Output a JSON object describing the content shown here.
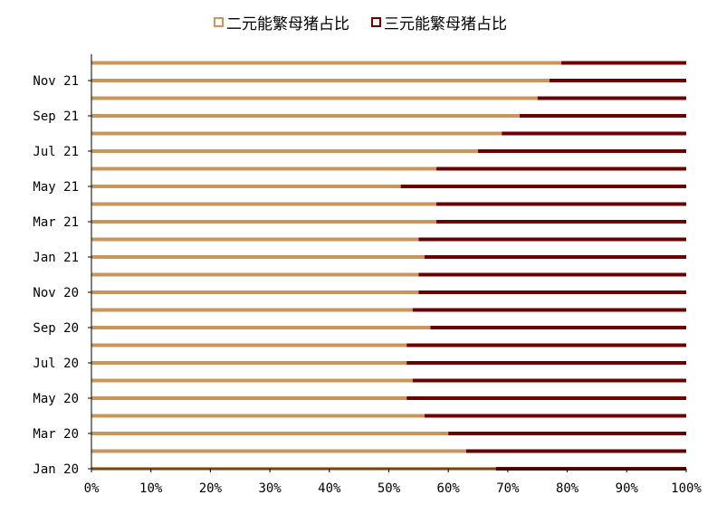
{
  "legend": [
    {
      "label": "二元能繁母猪占比",
      "color": "#C8965A"
    },
    {
      "label": "三元能繁母猪占比",
      "color": "#6B0000"
    }
  ],
  "chart_data": {
    "type": "bar",
    "orientation": "horizontal",
    "stacked": true,
    "percent": true,
    "categories": [
      "Jan 20",
      "Feb 20",
      "Mar 20",
      "Apr 20",
      "May 20",
      "Jun 20",
      "Jul 20",
      "Aug 20",
      "Sep 20",
      "Oct 20",
      "Nov 20",
      "Dec 20",
      "Jan 21",
      "Feb 21",
      "Mar 21",
      "Apr 21",
      "May 21",
      "Jun 21",
      "Jul 21",
      "Aug 21",
      "Sep 21",
      "Oct 21",
      "Nov 21",
      "Dec 21"
    ],
    "y_tick_labels": [
      "Jan 20",
      "Mar 20",
      "May 20",
      "Jul 20",
      "Sep 20",
      "Nov 20",
      "Jan 21",
      "Mar 21",
      "May 21",
      "Jul 21",
      "Sep 21",
      "Nov 21"
    ],
    "x_tick_labels": [
      "0%",
      "10%",
      "20%",
      "30%",
      "40%",
      "50%",
      "60%",
      "70%",
      "80%",
      "90%",
      "100%"
    ],
    "xlim": [
      0,
      100
    ],
    "series": [
      {
        "name": "二元能繁母猪占比",
        "color": "#C8965A",
        "values": [
          68,
          63,
          60,
          56,
          53,
          54,
          53,
          53,
          57,
          54,
          55,
          55,
          56,
          55,
          58,
          58,
          52,
          58,
          65,
          69,
          72,
          75,
          77,
          79
        ]
      },
      {
        "name": "三元能繁母猪占比",
        "color": "#6B0000",
        "values": [
          32,
          37,
          40,
          44,
          47,
          46,
          47,
          47,
          43,
          46,
          45,
          45,
          44,
          45,
          42,
          42,
          48,
          42,
          35,
          31,
          28,
          25,
          23,
          21
        ]
      }
    ]
  }
}
